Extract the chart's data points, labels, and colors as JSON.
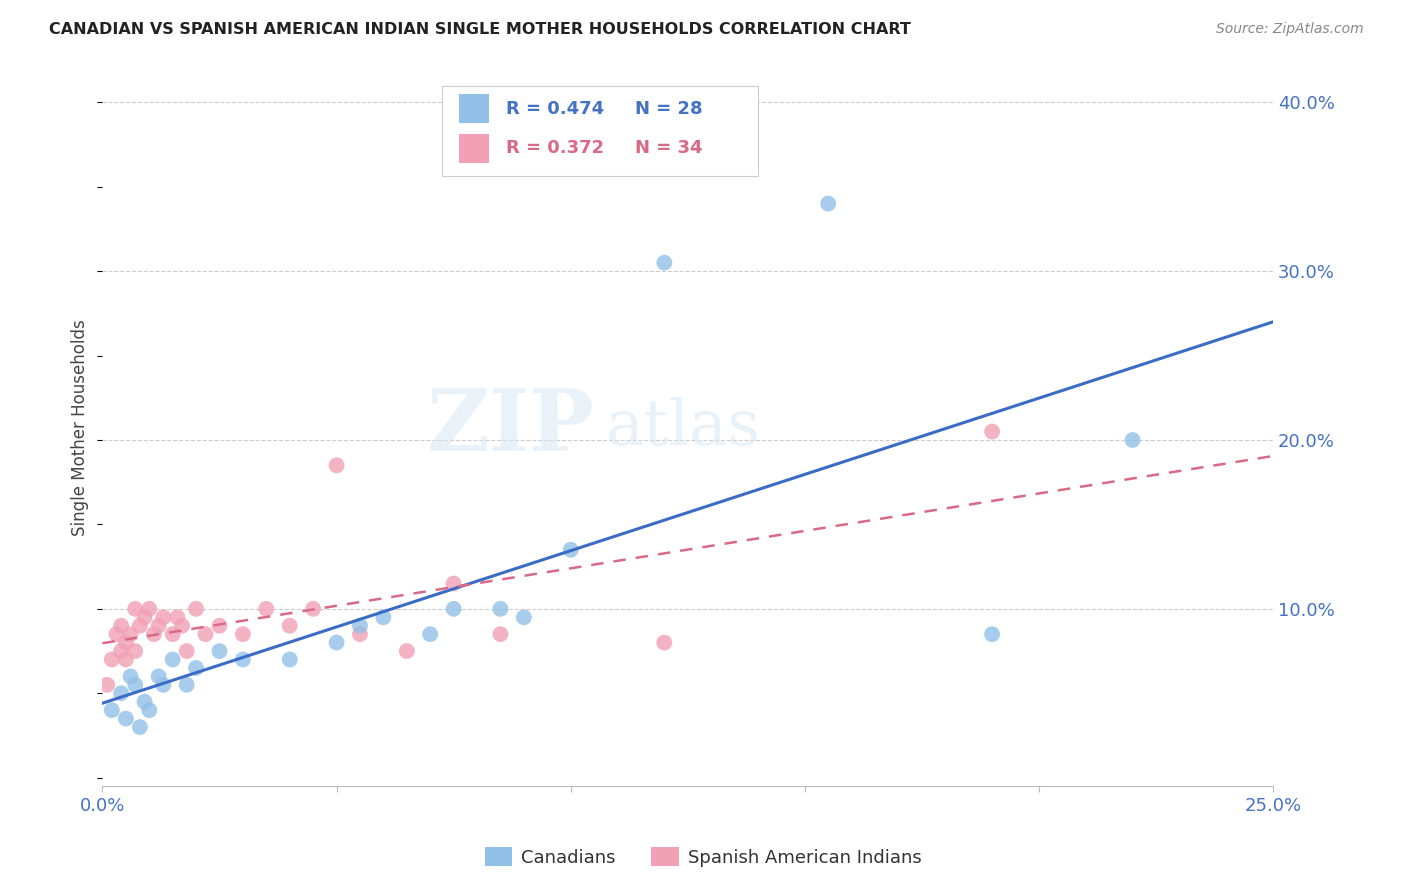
{
  "title": "CANADIAN VS SPANISH AMERICAN INDIAN SINGLE MOTHER HOUSEHOLDS CORRELATION CHART",
  "source": "Source: ZipAtlas.com",
  "ylabel": "Single Mother Households",
  "xlim": [
    0.0,
    0.25
  ],
  "ylim": [
    -0.005,
    0.42
  ],
  "canadians_x": [
    0.002,
    0.004,
    0.005,
    0.006,
    0.007,
    0.008,
    0.009,
    0.01,
    0.012,
    0.013,
    0.015,
    0.018,
    0.02,
    0.025,
    0.03,
    0.04,
    0.05,
    0.055,
    0.06,
    0.07,
    0.075,
    0.085,
    0.09,
    0.1,
    0.12,
    0.155,
    0.19,
    0.22
  ],
  "canadians_y": [
    0.04,
    0.05,
    0.035,
    0.06,
    0.055,
    0.03,
    0.045,
    0.04,
    0.06,
    0.055,
    0.07,
    0.055,
    0.065,
    0.075,
    0.07,
    0.07,
    0.08,
    0.09,
    0.095,
    0.085,
    0.1,
    0.1,
    0.095,
    0.135,
    0.305,
    0.34,
    0.085,
    0.2
  ],
  "spanish_ai_x": [
    0.001,
    0.002,
    0.003,
    0.004,
    0.004,
    0.005,
    0.005,
    0.006,
    0.007,
    0.007,
    0.008,
    0.009,
    0.01,
    0.011,
    0.012,
    0.013,
    0.015,
    0.016,
    0.017,
    0.018,
    0.02,
    0.022,
    0.025,
    0.03,
    0.035,
    0.04,
    0.045,
    0.05,
    0.055,
    0.065,
    0.075,
    0.085,
    0.12,
    0.19
  ],
  "spanish_ai_y": [
    0.055,
    0.07,
    0.085,
    0.09,
    0.075,
    0.07,
    0.08,
    0.085,
    0.1,
    0.075,
    0.09,
    0.095,
    0.1,
    0.085,
    0.09,
    0.095,
    0.085,
    0.095,
    0.09,
    0.075,
    0.1,
    0.085,
    0.09,
    0.085,
    0.1,
    0.09,
    0.1,
    0.185,
    0.085,
    0.075,
    0.115,
    0.085,
    0.08,
    0.205
  ],
  "r_canadians": 0.474,
  "n_canadians": 28,
  "r_spanish_ai": 0.372,
  "n_spanish_ai": 34,
  "color_canadians": "#92C0E8",
  "color_spanish_ai": "#F2A0B5",
  "color_line_canadians": "#3B6CC5",
  "color_line_spanish_ai": "#D96A85",
  "legend_color_canadians": "#4472C4",
  "legend_color_spanish_ai": "#D96A85",
  "background_color": "#FFFFFF",
  "grid_color": "#CCCCCC",
  "watermark_zip": "ZIP",
  "watermark_atlas": "atlas",
  "ytick_right_vals": [
    0.1,
    0.2,
    0.3,
    0.4
  ],
  "ytick_right_labels": [
    "10.0%",
    "20.0%",
    "30.0%",
    "40.0%"
  ],
  "xtick_vals": [
    0.0,
    0.05,
    0.1,
    0.15,
    0.2,
    0.25
  ]
}
